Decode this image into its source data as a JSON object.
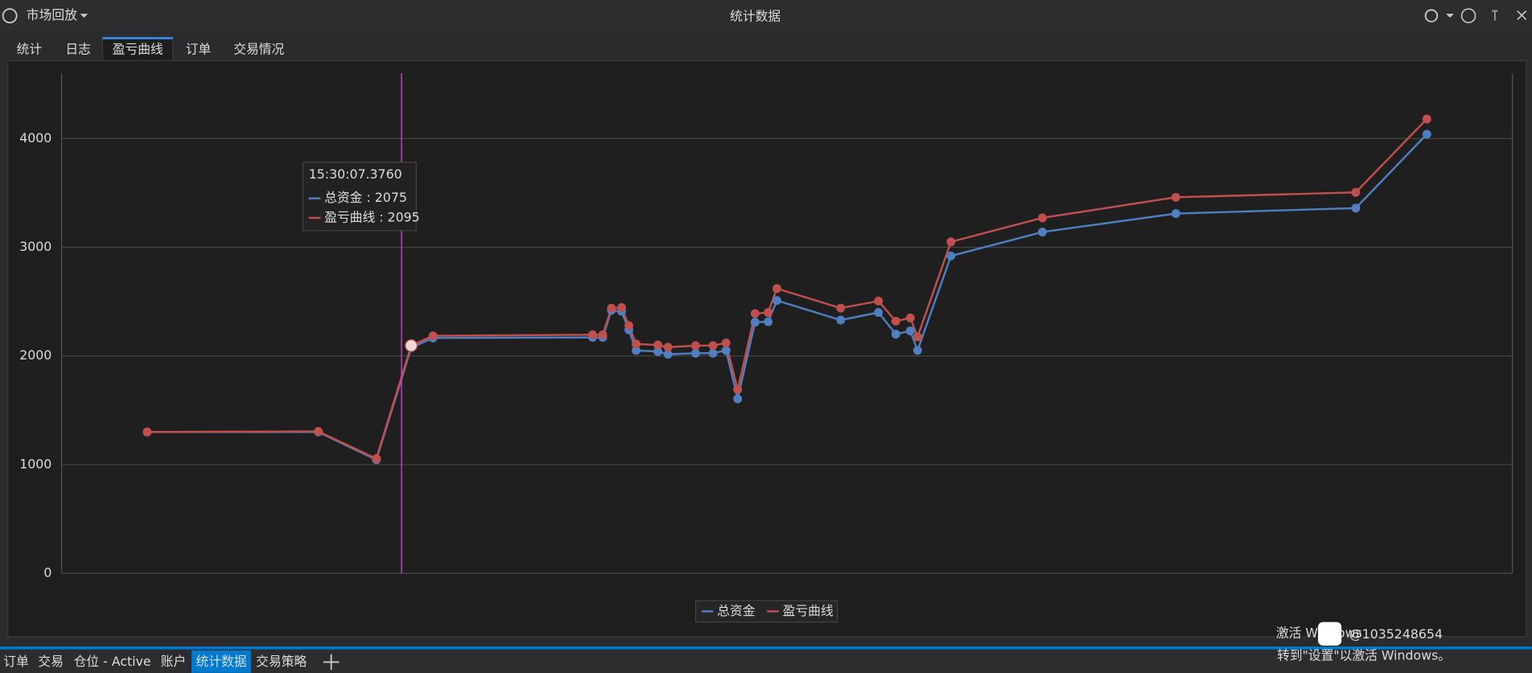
{
  "header": {
    "app": "市场回放",
    "title": "统计数据"
  },
  "tabs": [
    "统计",
    "日志",
    "盈亏曲线",
    "订单",
    "交易情况"
  ],
  "chart_data": {
    "type": "line",
    "x": [
      59,
      177,
      217,
      241,
      256,
      366,
      373,
      379,
      386,
      391,
      396,
      411,
      418,
      437,
      449,
      458,
      466,
      478,
      487,
      493,
      537,
      563,
      575,
      585,
      590,
      613,
      676,
      768,
      892,
      941
    ],
    "xlim": [
      0,
      1000
    ],
    "series": [
      {
        "name": "总资金",
        "color": "#4f7fc0",
        "values": [
          1300,
          1300,
          1045,
          2075,
          2165,
          2170,
          2170,
          2420,
          2410,
          2240,
          2050,
          2040,
          2015,
          2025,
          2025,
          2050,
          1605,
          2310,
          2315,
          2510,
          2330,
          2400,
          2200,
          2230,
          2050,
          2920,
          3140,
          3310,
          3360,
          4040
        ]
      },
      {
        "name": "盈亏曲线",
        "color": "#c0504d",
        "values": [
          1300,
          1305,
          1055,
          2095,
          2185,
          2195,
          2195,
          2440,
          2445,
          2280,
          2110,
          2100,
          2080,
          2095,
          2095,
          2120,
          1690,
          2390,
          2400,
          2620,
          2440,
          2505,
          2320,
          2350,
          2175,
          3050,
          3270,
          3460,
          3505,
          4180
        ]
      }
    ],
    "ylim": [
      0,
      4600
    ],
    "yticks": [
      0,
      1000,
      2000,
      3000,
      4000
    ],
    "grid": true,
    "legend": "bottom",
    "tooltip": {
      "title": "15:30:07.3760",
      "items": [
        "总资金 : 2075",
        "盈亏曲线 : 2095"
      ]
    }
  },
  "bottom_tabs": [
    "订单",
    "交易",
    "仓位 - Active",
    "账户",
    "统计数据",
    "交易策略"
  ],
  "watermark": {
    "line1": "激活 Windows",
    "line2": "转到\"设置\"以激活 Windows。",
    "handle": "@1035248654"
  }
}
